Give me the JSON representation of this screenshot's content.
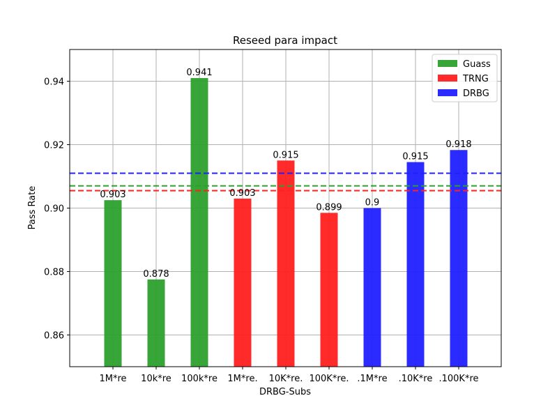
{
  "chart_data": {
    "type": "bar",
    "title": "Reseed para impact",
    "xlabel": "DRBG-Subs",
    "ylabel": "Pass Rate",
    "ylim": [
      0.85,
      0.95
    ],
    "yticks": [
      0.86,
      0.88,
      0.9,
      0.92,
      0.94
    ],
    "ytick_labels": [
      "0.86",
      "0.88",
      "0.90",
      "0.92",
      "0.94"
    ],
    "grid": true,
    "legend_position": "top-right",
    "categories": [
      "1M*re",
      "10k*re",
      "100k*re",
      "1M*re.",
      "10K*re.",
      "100K*re.",
      ".1M*re",
      ".10K*re",
      ".100K*re"
    ],
    "series": [
      {
        "name": "Guass",
        "color": "#2ca02c",
        "values": [
          0.9025,
          0.8775,
          0.941,
          null,
          null,
          null,
          null,
          null,
          null
        ],
        "labels": [
          "0.903",
          "0.878",
          "0.941",
          "",
          "",
          "",
          "",
          "",
          ""
        ],
        "mean": 0.907
      },
      {
        "name": "TRNG",
        "color": "#ff2020",
        "values": [
          null,
          null,
          null,
          0.903,
          0.915,
          0.8985,
          null,
          null,
          null
        ],
        "labels": [
          "",
          "",
          "",
          "0.903",
          "0.915",
          "0.899",
          "",
          "",
          ""
        ],
        "mean": 0.9055
      },
      {
        "name": "DRBG",
        "color": "#2020ff",
        "values": [
          null,
          null,
          null,
          null,
          null,
          null,
          0.9,
          0.9145,
          0.9183
        ],
        "labels": [
          "",
          "",
          "",
          "",
          "",
          "",
          "0.9",
          "0.915",
          "0.918"
        ],
        "mean": 0.911
      }
    ]
  }
}
